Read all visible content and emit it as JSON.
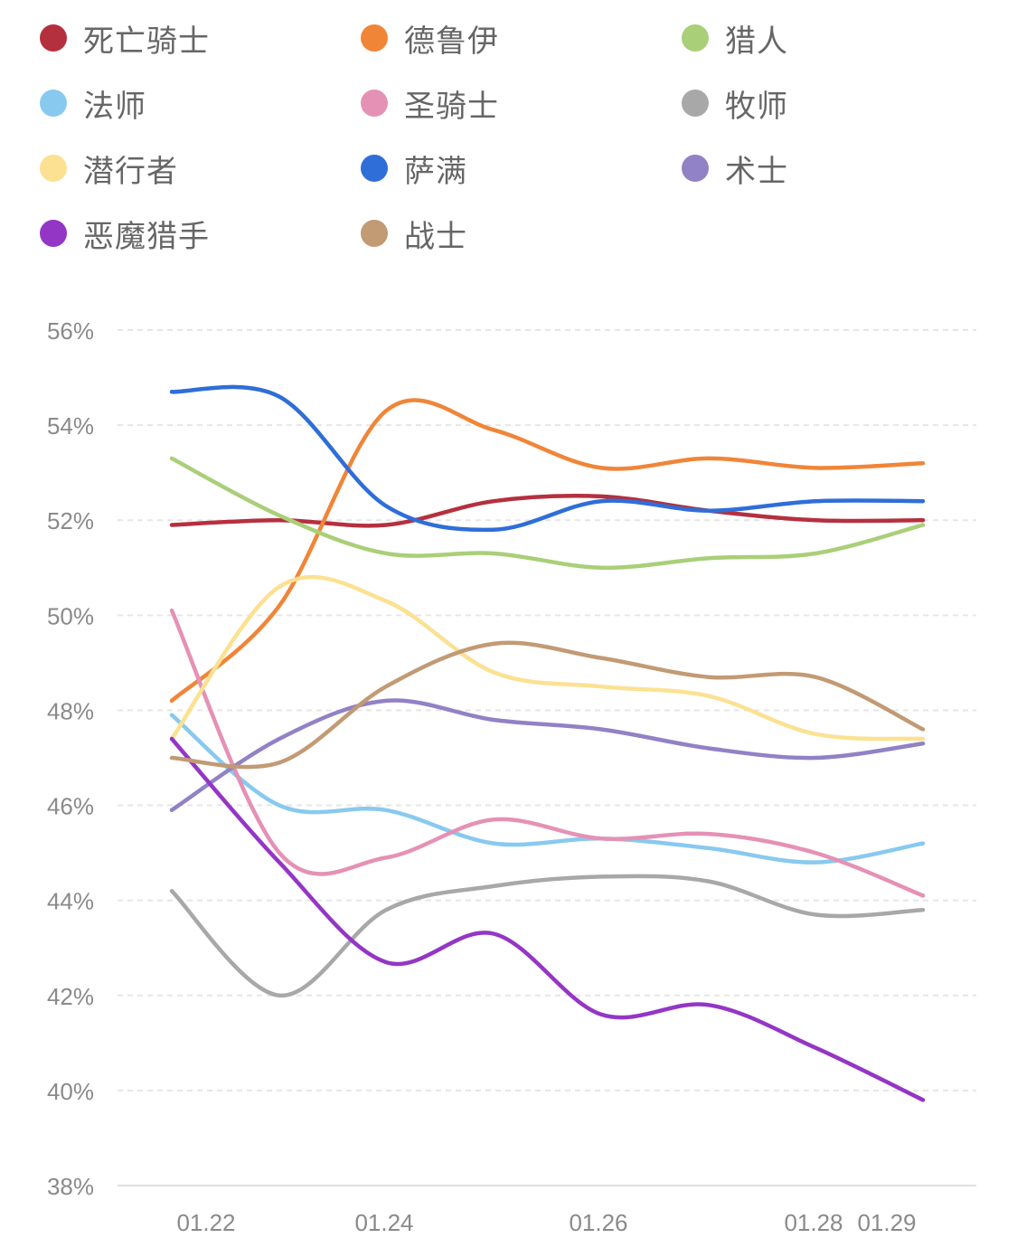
{
  "chart_data": {
    "type": "line",
    "title": "",
    "xlabel": "",
    "ylabel": "",
    "ylim": [
      38,
      56
    ],
    "y_ticks": [
      "56%",
      "54%",
      "52%",
      "50%",
      "48%",
      "46%",
      "44%",
      "42%",
      "40%",
      "38%"
    ],
    "x": [
      "01.22",
      "01.23",
      "01.24",
      "01.25",
      "01.26",
      "01.27",
      "01.28",
      "01.29"
    ],
    "x_tick_labels": [
      {
        "label": "01.22",
        "x": "01.22"
      },
      {
        "label": "01.24",
        "x": "01.24"
      },
      {
        "label": "01.26",
        "x": "01.26"
      },
      {
        "label": "01.28",
        "x": "01.28"
      },
      {
        "label": "01.29",
        "x": "01.29"
      }
    ],
    "grid": true,
    "legend_position": "top",
    "series": [
      {
        "name": "死亡骑士",
        "color": "#b5303f",
        "values": [
          51.9,
          52.0,
          51.9,
          52.4,
          52.5,
          52.2,
          52.0,
          52.0
        ]
      },
      {
        "name": "德鲁伊",
        "color": "#f08538",
        "values": [
          48.2,
          50.2,
          54.3,
          53.9,
          53.1,
          53.3,
          53.1,
          53.2
        ]
      },
      {
        "name": "猎人",
        "color": "#a9cf78",
        "values": [
          53.3,
          52.1,
          51.3,
          51.3,
          51.0,
          51.2,
          51.3,
          51.9
        ]
      },
      {
        "name": "法师",
        "color": "#88c9ef",
        "values": [
          47.9,
          46.0,
          45.9,
          45.2,
          45.3,
          45.1,
          44.8,
          45.2
        ]
      },
      {
        "name": "圣骑士",
        "color": "#e591b5",
        "values": [
          50.1,
          45.0,
          44.9,
          45.7,
          45.3,
          45.4,
          45.0,
          44.1
        ]
      },
      {
        "name": "牧师",
        "color": "#a8a8a8",
        "values": [
          44.2,
          42.0,
          43.8,
          44.3,
          44.5,
          44.4,
          43.7,
          43.8
        ]
      },
      {
        "name": "潜行者",
        "color": "#fbe191",
        "values": [
          47.4,
          50.6,
          50.3,
          48.8,
          48.5,
          48.3,
          47.5,
          47.4
        ]
      },
      {
        "name": "萨满",
        "color": "#2f6ed8",
        "values": [
          54.7,
          54.6,
          52.3,
          51.8,
          52.4,
          52.2,
          52.4,
          52.4
        ]
      },
      {
        "name": "术士",
        "color": "#9181c5",
        "values": [
          45.9,
          47.4,
          48.2,
          47.8,
          47.6,
          47.2,
          47.0,
          47.3
        ]
      },
      {
        "name": "恶魔猎手",
        "color": "#9436c5",
        "values": [
          47.4,
          44.8,
          42.7,
          43.3,
          41.6,
          41.8,
          40.9,
          39.8
        ]
      },
      {
        "name": "战士",
        "color": "#c29a74",
        "values": [
          47.0,
          46.9,
          48.5,
          49.4,
          49.1,
          48.7,
          48.7,
          47.6
        ]
      }
    ]
  }
}
